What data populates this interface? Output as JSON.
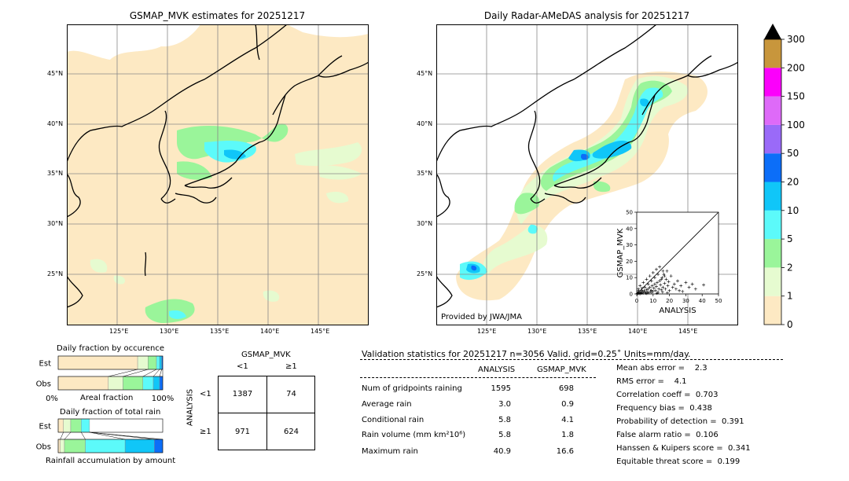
{
  "left_map": {
    "title": "GSMAP_MVK estimates for 20251217",
    "lat_labels": [
      "45°N",
      "40°N",
      "35°N",
      "30°N",
      "25°N"
    ],
    "lon_labels": [
      "125°E",
      "130°E",
      "135°E",
      "140°E",
      "145°E"
    ]
  },
  "right_map": {
    "title": "Daily Radar-AMeDAS analysis for 20251217",
    "lat_labels": [
      "45°N",
      "40°N",
      "35°N",
      "30°N",
      "25°N"
    ],
    "lon_labels": [
      "125°E",
      "130°E",
      "135°E",
      "140°E",
      "145°E"
    ],
    "credit": "Provided by JWA/JMA"
  },
  "colorbar": {
    "levels": [
      "0",
      "1",
      "2",
      "5",
      "10",
      "20",
      "50",
      "100",
      "150",
      "200",
      "300"
    ],
    "colors": [
      "#fde9c3",
      "#e6fbd0",
      "#9af59a",
      "#5cfafa",
      "#10c6f8",
      "#0c6ef8",
      "#9a6af8",
      "#de6af8",
      "#fb00fb",
      "#c8963c"
    ]
  },
  "chart_data": [
    {
      "type": "scatter",
      "xlabel": "ANALYSIS",
      "ylabel": "GSMAP_MVK",
      "xlim": [
        0,
        50
      ],
      "ylim": [
        0,
        50
      ],
      "xticks": [
        "0",
        "10",
        "20",
        "30",
        "40",
        "50"
      ],
      "yticks": [
        "0",
        "10",
        "20",
        "30",
        "40",
        "50"
      ],
      "diagonal_line": true,
      "points": [
        [
          0.5,
          0.3
        ],
        [
          1,
          0.5
        ],
        [
          1.5,
          0.2
        ],
        [
          2,
          1
        ],
        [
          2.5,
          0.8
        ],
        [
          3,
          0.4
        ],
        [
          3.5,
          1.5
        ],
        [
          4,
          0.6
        ],
        [
          4.5,
          2
        ],
        [
          5,
          1.2
        ],
        [
          5.5,
          0.5
        ],
        [
          6,
          2.5
        ],
        [
          6.5,
          1.1
        ],
        [
          7,
          3
        ],
        [
          7.5,
          0.7
        ],
        [
          8,
          4
        ],
        [
          8.5,
          1.8
        ],
        [
          9,
          2.2
        ],
        [
          9.5,
          5
        ],
        [
          10,
          1.5
        ],
        [
          10.5,
          3.5
        ],
        [
          11,
          6
        ],
        [
          11.5,
          2
        ],
        [
          12,
          4.5
        ],
        [
          12.5,
          7
        ],
        [
          13,
          1
        ],
        [
          13.5,
          3
        ],
        [
          14,
          8
        ],
        [
          14.5,
          5.5
        ],
        [
          15,
          2.5
        ],
        [
          15.5,
          10
        ],
        [
          16,
          4
        ],
        [
          16.5,
          12
        ],
        [
          17,
          6.5
        ],
        [
          17.5,
          3
        ],
        [
          18,
          9
        ],
        [
          18.5,
          14
        ],
        [
          19,
          5
        ],
        [
          19.5,
          7.5
        ],
        [
          20,
          2
        ],
        [
          21,
          11
        ],
        [
          22,
          4
        ],
        [
          23,
          6
        ],
        [
          24,
          3
        ],
        [
          25,
          8
        ],
        [
          26,
          2
        ],
        [
          27,
          5
        ],
        [
          28,
          1.5
        ],
        [
          30,
          7
        ],
        [
          32,
          4
        ],
        [
          34,
          6
        ],
        [
          36,
          3
        ],
        [
          40.9,
          5.5
        ],
        [
          1,
          3
        ],
        [
          2,
          5
        ],
        [
          3,
          2
        ],
        [
          4,
          7
        ],
        [
          5,
          4
        ],
        [
          6,
          9
        ],
        [
          7,
          6
        ],
        [
          8,
          11
        ],
        [
          9,
          8
        ],
        [
          10,
          13
        ],
        [
          11,
          10
        ],
        [
          12,
          15
        ],
        [
          13,
          12
        ],
        [
          14,
          16.6
        ],
        [
          15,
          9
        ],
        [
          16,
          14
        ],
        [
          17,
          11
        ],
        [
          0.2,
          0.1
        ],
        [
          0.8,
          1
        ],
        [
          1.2,
          2
        ],
        [
          2.2,
          0.2
        ],
        [
          3.3,
          3.5
        ],
        [
          6.2,
          0.3
        ],
        [
          9.1,
          0.9
        ],
        [
          12.4,
          0.4
        ],
        [
          15.8,
          1.2
        ],
        [
          18.7,
          0.6
        ]
      ]
    },
    {
      "type": "bar",
      "title": "Daily fraction by occurence",
      "categories": [
        "Est",
        "Obs"
      ],
      "xlabel": "Areal fraction",
      "xticks": [
        "0%",
        "100%"
      ],
      "series": [
        {
          "values": [
            0.76,
            0.48
          ]
        },
        {
          "values": [
            0.1,
            0.14
          ]
        },
        {
          "values": [
            0.08,
            0.19
          ]
        },
        {
          "values": [
            0.03,
            0.1
          ]
        },
        {
          "values": [
            0.02,
            0.06
          ]
        },
        {
          "values": [
            0.01,
            0.03
          ]
        }
      ]
    },
    {
      "type": "bar",
      "title": "Daily fraction of total rain",
      "categories": [
        "Est",
        "Obs"
      ],
      "xlabel": "Rainfall accumulation by amount",
      "series": [
        {
          "values": [
            0.05,
            0.02
          ]
        },
        {
          "values": [
            0.07,
            0.04
          ]
        },
        {
          "values": [
            0.1,
            0.2
          ]
        },
        {
          "values": [
            0.08,
            0.38
          ]
        },
        {
          "values": [
            0.0,
            0.28
          ]
        },
        {
          "values": [
            0.0,
            0.08
          ]
        }
      ]
    }
  ],
  "contingency": {
    "title": "GSMAP_MVK",
    "col_labels": [
      "<1",
      "≥1"
    ],
    "row_axis": "ANALYSIS",
    "row_labels": [
      "<1",
      "≥1"
    ],
    "cells": [
      [
        "1387",
        "74"
      ],
      [
        "971",
        "624"
      ]
    ]
  },
  "validation": {
    "header": "Validation statistics for 20251217  n=3056 Valid. grid=0.25˚ Units=mm/day.",
    "col_analysis": "ANALYSIS",
    "col_gsmap": "GSMAP_MVK",
    "rows": [
      {
        "label": "Num of gridpoints raining",
        "analysis": "1595",
        "gsmap": "698"
      },
      {
        "label": "Average rain",
        "analysis": "3.0",
        "gsmap": "0.9"
      },
      {
        "label": "Conditional rain",
        "analysis": "5.8",
        "gsmap": "4.1"
      },
      {
        "label": "Rain volume (mm km²10⁶)",
        "analysis": "5.8",
        "gsmap": "1.8"
      },
      {
        "label": "Maximum rain",
        "analysis": "40.9",
        "gsmap": "16.6"
      }
    ],
    "scores": [
      "Mean abs error =    2.3",
      "RMS error =    4.1",
      "Correlation coeff =  0.703",
      "Frequency bias =  0.438",
      "Probability of detection =  0.391",
      "False alarm ratio =  0.106",
      "Hanssen & Kuipers score =  0.341",
      "Equitable threat score =  0.199"
    ]
  }
}
